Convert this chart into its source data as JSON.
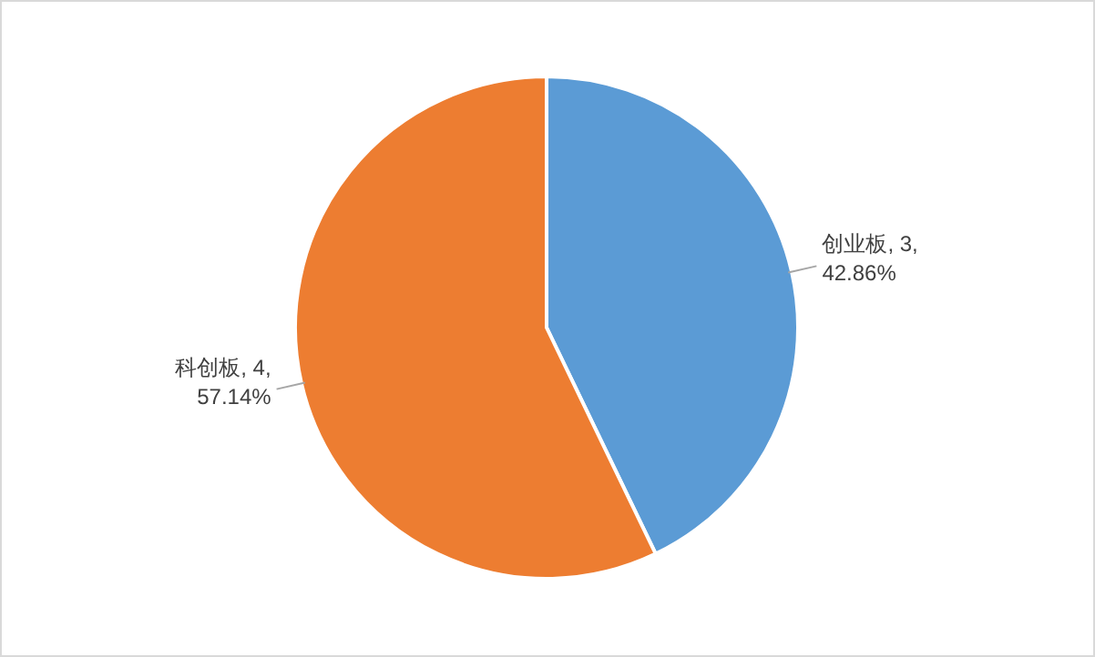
{
  "chart_data": {
    "type": "pie",
    "categories": [
      "创业板",
      "科创板"
    ],
    "values": [
      3,
      4
    ],
    "value_labels": [
      "3,\n42.86%",
      "4,\n57.14%"
    ],
    "colors": [
      "#5b9bd5",
      "#ed7d31"
    ],
    "legend": false
  }
}
